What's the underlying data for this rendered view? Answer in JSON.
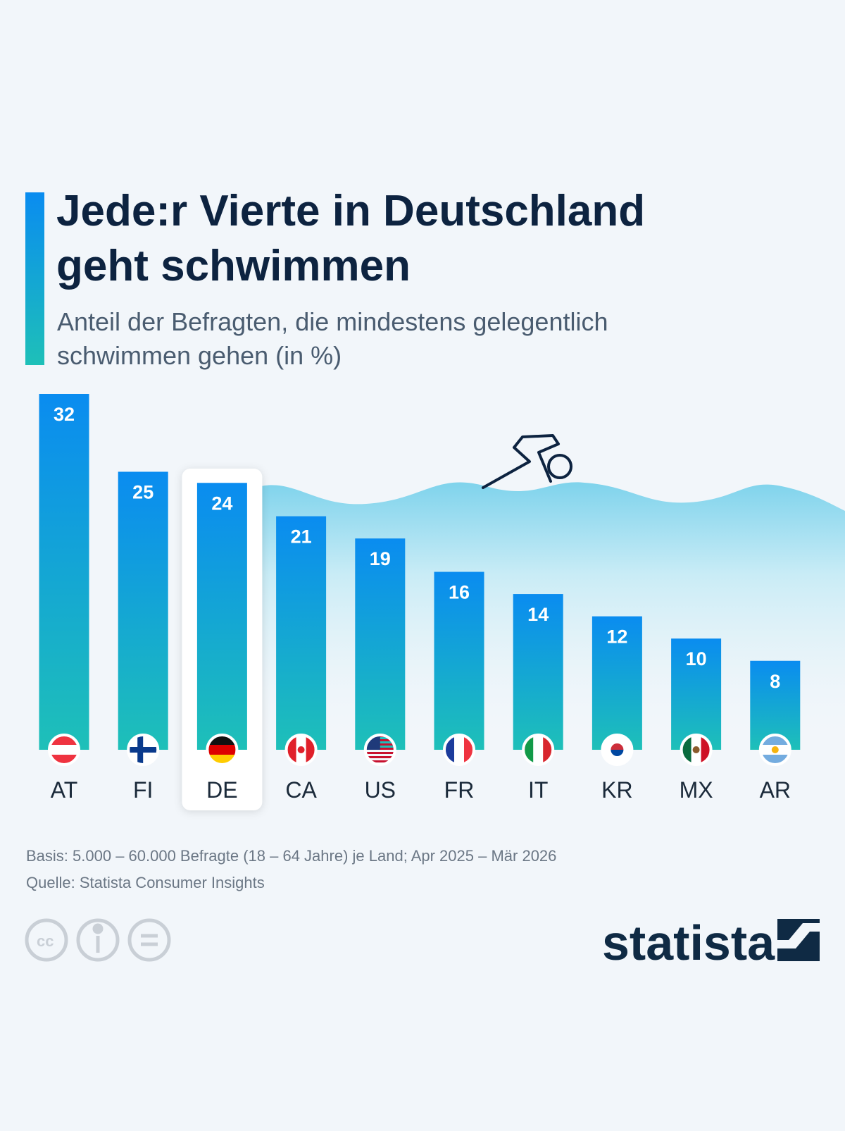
{
  "chart_data": {
    "type": "bar",
    "title": [
      "Jede:r Vierte in Deutschland",
      "geht schwimmen"
    ],
    "subtitle": [
      "Anteil der Befragten, die mindestens gelegentlich",
      "schwimmen gehen (in %)"
    ],
    "categories": [
      "AT",
      "FI",
      "DE",
      "CA",
      "US",
      "FR",
      "IT",
      "KR",
      "MX",
      "AR"
    ],
    "values": [
      32,
      25,
      24,
      21,
      19,
      16,
      14,
      12,
      10,
      8
    ],
    "highlight": "DE",
    "color": [
      "#0a8cf0",
      "#1ec0b8"
    ],
    "notes": [
      "Basis: 5.000 – 60.000 Befragte (18 – 64 Jahre) je Land; Apr 2025 – Mär 2026",
      "Quelle: Statista Consumer Insights"
    ],
    "brand": "statista"
  }
}
